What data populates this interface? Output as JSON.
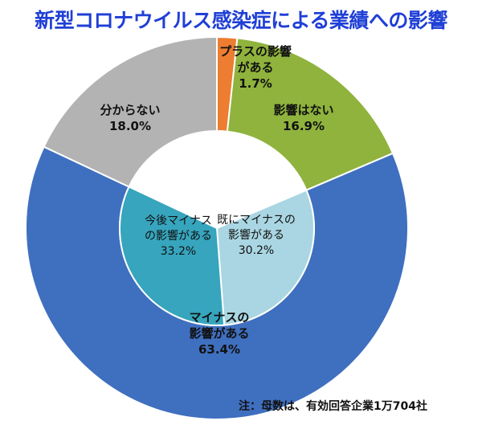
{
  "title": "新型コロナウイルス感染症による業績への影響",
  "note": "注：母数は、有効回答企業1万704社",
  "chart_data": {
    "type": "pie",
    "variant": "nested-donut",
    "title": "新型コロナウイルス感染症による業績への影響",
    "outer": [
      {
        "label_lines": [
          "プラスの影響",
          "がある"
        ],
        "value": 1.7,
        "value_text": "1.7%",
        "color": "#ed7d31"
      },
      {
        "label_lines": [
          "影響はない"
        ],
        "value": 16.9,
        "value_text": "16.9%",
        "color": "#8fb33c"
      },
      {
        "label_lines": [
          "マイナスの",
          "影響がある"
        ],
        "value": 63.4,
        "value_text": "63.4%",
        "color": "#3f6fbf"
      },
      {
        "label_lines": [
          "分からない"
        ],
        "value": 18.0,
        "value_text": "18.0%",
        "color": "#b3b3b3"
      }
    ],
    "inner": [
      {
        "label_lines": [
          "既にマイナスの",
          "影響がある"
        ],
        "value": 30.2,
        "value_text": "30.2%",
        "color": "#a9d6e2"
      },
      {
        "label_lines": [
          "今後マイナス",
          "の影響がある"
        ],
        "value": 33.2,
        "value_text": "33.2%",
        "color": "#36a5bd"
      }
    ]
  }
}
